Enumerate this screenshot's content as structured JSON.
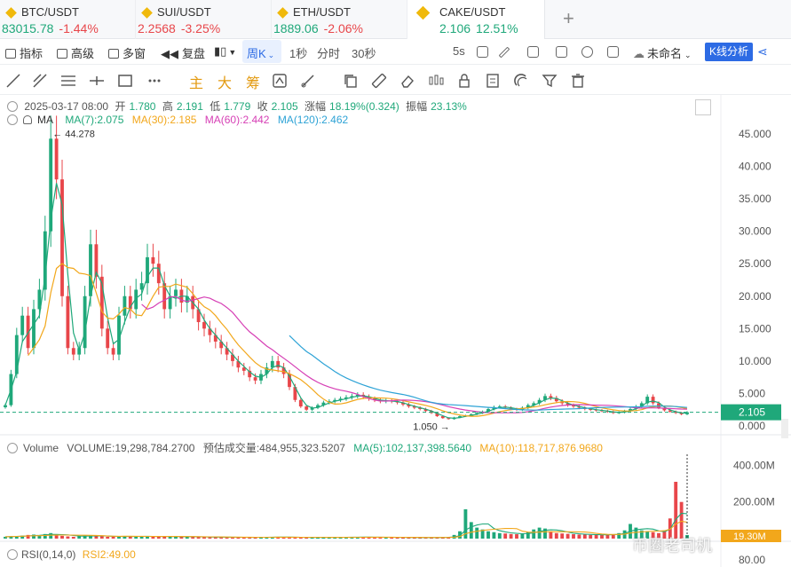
{
  "tabs": [
    {
      "symbol": "BTC/USDT",
      "price": "83015.78",
      "change": "-1.44%",
      "dir": "neg",
      "price_dir": "pos"
    },
    {
      "symbol": "SUI/USDT",
      "price": "2.2568",
      "change": "-3.25%",
      "dir": "neg",
      "price_dir": "neg"
    },
    {
      "symbol": "ETH/USDT",
      "price": "1889.06",
      "change": "-2.06%",
      "dir": "neg",
      "price_dir": "pos"
    },
    {
      "symbol": "CAKE/USDT",
      "price": "2.106",
      "change": "12.51%",
      "dir": "pos",
      "price_dir": "pos"
    }
  ],
  "add_tab": "+",
  "toolbar": {
    "indicators": "指标",
    "advanced": "高级",
    "multi_window": "多窗",
    "replay": "复盘",
    "period_weekly": "周K",
    "period_1s": "1秒",
    "period_timeline": "分时",
    "period_30s": "30秒",
    "refresh": "5s",
    "layout_name": "未命名",
    "kline_analysis": "K线分析"
  },
  "tools": {
    "main": "主",
    "big": "大",
    "chips": "筹"
  },
  "chart": {
    "date": "2025-03-17 08:00",
    "open_label": "开",
    "open": "1.780",
    "high_label": "高",
    "high": "2.191",
    "low_label": "低",
    "low": "1.779",
    "close_label": "收",
    "close": "2.105",
    "change_label": "涨幅",
    "change": "18.19%(0.324)",
    "amp_label": "振幅",
    "amp": "23.13%",
    "ma_title": "MA",
    "ma7": "MA(7):2.075",
    "ma30": "MA(30):2.185",
    "ma60": "MA(60):2.442",
    "ma120": "MA(120):2.462",
    "high_marker": "← 44.278",
    "low_marker": "1.050 →",
    "last_price": "2.105",
    "y_ticks": [
      "45.000",
      "40.000",
      "35.000",
      "30.000",
      "25.000",
      "20.000",
      "15.000",
      "10.000",
      "5.000",
      "0.000"
    ],
    "colors": {
      "up": "#1fa87a",
      "down": "#e8464a",
      "ma7": "#1fa87a",
      "ma30": "#f2a71b",
      "ma60": "#d63fb5",
      "ma120": "#2ea3d6"
    }
  },
  "volume": {
    "title": "Volume",
    "volume": "VOLUME:19,298,784.2700",
    "est": "预估成交量:484,955,323.5207",
    "ma5": "MA(5):102,137,398.5640",
    "ma10": "MA(10):118,717,876.9680",
    "y_ticks": [
      "400.00M",
      "200.00M"
    ],
    "last_tag": "19.30M"
  },
  "rsi": {
    "title": "RSI(0,14,0)",
    "value": "RSI2:49.00",
    "y_tick": "80.00"
  },
  "watermark": "币圈老司机",
  "chart_data": {
    "type": "candlestick",
    "ylim": [
      0,
      47
    ],
    "last": 2.105,
    "ohlc_path_closes": [
      3.2,
      8,
      14,
      17,
      12,
      18,
      21,
      30,
      44.278,
      38,
      20,
      12,
      11,
      12,
      20,
      28,
      23,
      15,
      12,
      11,
      17,
      20,
      18,
      21,
      22,
      26,
      25,
      22,
      18,
      20,
      21,
      19,
      20,
      18,
      16,
      15,
      14,
      13,
      12,
      11,
      10,
      9,
      8.5,
      7.5,
      7,
      8,
      9,
      10,
      9,
      8,
      6,
      4,
      3,
      2.5,
      2.8,
      3.2,
      3.6,
      3.8,
      4,
      4.2,
      4.4,
      4.6,
      4.8,
      4.5,
      4.2,
      4,
      3.8,
      3.9,
      3.8,
      3.6,
      3.3,
      3,
      2.8,
      2.6,
      2.3,
      2,
      1.5,
      1.2,
      1.05,
      1.3,
      1.5,
      1.6,
      1.8,
      2,
      2.2,
      2.6,
      2.9,
      3,
      2.8,
      2.6,
      2.5,
      2.8,
      3.2,
      3.5,
      4,
      4.6,
      4.3,
      3.8,
      3.5,
      3.2,
      3,
      2.8,
      2.6,
      2.5,
      2.4,
      2.3,
      2.2,
      2,
      2.1,
      2.3,
      2.6,
      3,
      3.5,
      4.5,
      3.5,
      2.8,
      2.4,
      2.2,
      2,
      1.8,
      2.105
    ],
    "volume_m": [
      10,
      12,
      14,
      16,
      20,
      22,
      18,
      25,
      30,
      20,
      15,
      12,
      10,
      14,
      16,
      18,
      14,
      12,
      10,
      10,
      12,
      14,
      12,
      10,
      12,
      14,
      12,
      10,
      10,
      12,
      12,
      10,
      10,
      9,
      9,
      8,
      8,
      8,
      8,
      7,
      7,
      7,
      7,
      7,
      7,
      8,
      8,
      9,
      9,
      8,
      7,
      6,
      6,
      6,
      6,
      7,
      7,
      7,
      7,
      8,
      8,
      8,
      8,
      8,
      8,
      7,
      7,
      7,
      7,
      6,
      6,
      6,
      6,
      6,
      6,
      6,
      6,
      7,
      8,
      20,
      40,
      160,
      90,
      60,
      50,
      40,
      35,
      30,
      28,
      25,
      24,
      26,
      35,
      50,
      60,
      55,
      40,
      30,
      28,
      26,
      24,
      22,
      22,
      20,
      20,
      20,
      22,
      24,
      30,
      45,
      80,
      60,
      45,
      40,
      35,
      30,
      40,
      110,
      310,
      200,
      19.3
    ]
  }
}
